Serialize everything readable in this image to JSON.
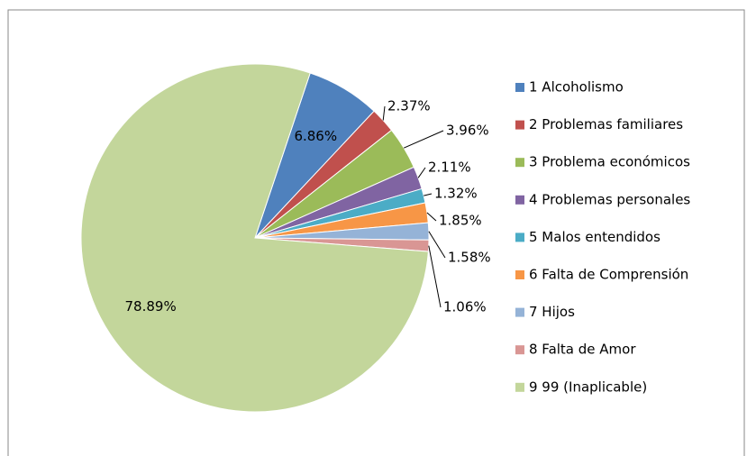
{
  "chart_data": {
    "type": "pie",
    "categories": [
      "1 Alcoholismo",
      "2 Problemas familiares",
      "3 Problema económicos",
      "4 Problemas personales",
      "5 Malos entendidos",
      "6 Falta de Comprensión",
      "7 Hijos",
      "8 Falta de Amor",
      "9 99 (Inaplicable)"
    ],
    "values": [
      6.86,
      2.37,
      3.96,
      2.11,
      1.32,
      1.85,
      1.58,
      1.06,
      78.89
    ],
    "value_labels": [
      "6.86%",
      "2.37%",
      "3.96%",
      "2.11%",
      "1.32%",
      "1.85%",
      "1.58%",
      "1.06%",
      "78.89%"
    ],
    "colors": [
      "#4F81BD",
      "#C0504D",
      "#9BBB59",
      "#8064A2",
      "#4BACC6",
      "#F79646",
      "#95B3D7",
      "#D99694",
      "#C3D69B"
    ],
    "legend": "right"
  }
}
